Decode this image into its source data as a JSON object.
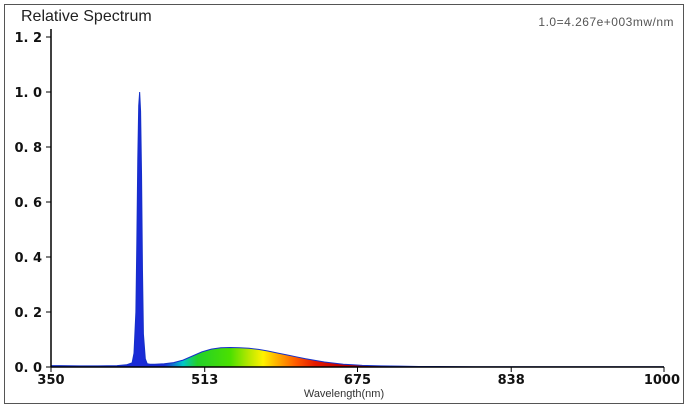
{
  "chart_data": {
    "type": "area",
    "title": "Relative Spectrum",
    "subtitle": "1.0=4.267e+003mw/nm",
    "xlabel": "Wavelength(nm)",
    "ylabel": "",
    "xlim": [
      350,
      1000
    ],
    "ylim": [
      0,
      1.2
    ],
    "x_ticks": [
      350,
      513,
      675,
      838,
      1000
    ],
    "y_ticks": [
      0.0,
      0.2,
      0.4,
      0.6,
      0.8,
      1.0,
      1.2
    ],
    "y_tick_labels": [
      "0. 0",
      "0. 2",
      "0. 4",
      "0. 6",
      "0. 8",
      "1. 0",
      "1. 2"
    ],
    "grid": false,
    "legend": "none",
    "series": [
      {
        "x": [
          350,
          360,
          380,
          400,
          420,
          430,
          436,
          438,
          440,
          441,
          442,
          443,
          444,
          445,
          446,
          447,
          448,
          450,
          452,
          455,
          460,
          470,
          480,
          490,
          500,
          510,
          520,
          530,
          540,
          550,
          560,
          570,
          580,
          590,
          600,
          610,
          620,
          630,
          640,
          650,
          660,
          670,
          680,
          690,
          700,
          720,
          740,
          760,
          800,
          850,
          900,
          950,
          1000
        ],
        "values": [
          0.005,
          0.005,
          0.004,
          0.004,
          0.005,
          0.008,
          0.015,
          0.05,
          0.2,
          0.45,
          0.75,
          0.95,
          1.0,
          0.93,
          0.7,
          0.35,
          0.12,
          0.03,
          0.012,
          0.01,
          0.01,
          0.012,
          0.016,
          0.025,
          0.04,
          0.055,
          0.065,
          0.07,
          0.071,
          0.07,
          0.068,
          0.064,
          0.058,
          0.051,
          0.044,
          0.037,
          0.03,
          0.024,
          0.018,
          0.014,
          0.01,
          0.008,
          0.006,
          0.005,
          0.004,
          0.003,
          0.002,
          0.002,
          0.001,
          0.001,
          0.001,
          0.001,
          0.001
        ]
      }
    ]
  }
}
